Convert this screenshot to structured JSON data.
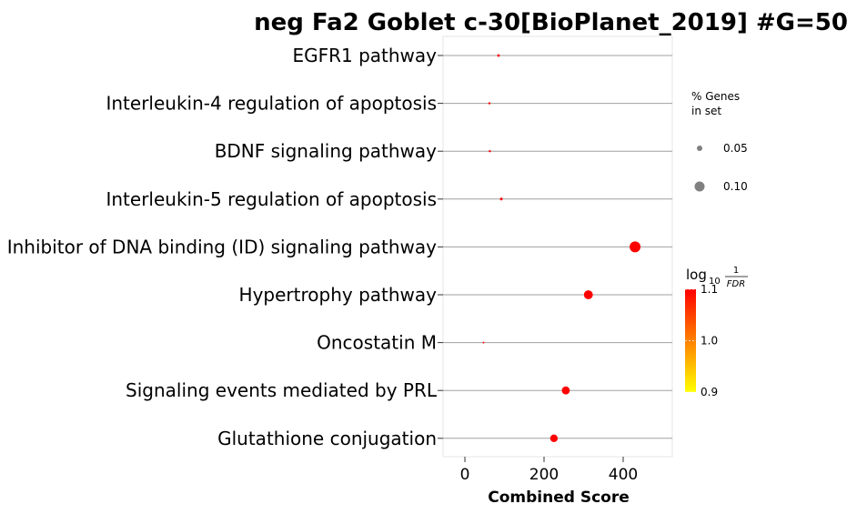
{
  "chart_data": {
    "type": "scatter",
    "title": "neg Fa2 Goblet c-30[BioPlanet_2019] #G=50",
    "xlabel": "Combined Score",
    "xlim": [
      -40,
      520
    ],
    "xticks": [
      0,
      200,
      400
    ],
    "grid": "horizontal",
    "categories": [
      "EGFR1 pathway",
      "Interleukin-4 regulation of apoptosis",
      "BDNF signaling pathway",
      "Interleukin-5 regulation of apoptosis",
      "Inhibitor of DNA binding (ID) signaling pathway",
      "Hypertrophy pathway",
      "Oncostatin M",
      "Signaling events mediated by PRL",
      "Glutathione conjugation"
    ],
    "points": [
      {
        "x": 85,
        "genes_pct": 0.007,
        "log10_inv_fdr": 1.1
      },
      {
        "x": 62,
        "genes_pct": 0.005,
        "log10_inv_fdr": 1.1
      },
      {
        "x": 63,
        "genes_pct": 0.005,
        "log10_inv_fdr": 1.1
      },
      {
        "x": 92,
        "genes_pct": 0.008,
        "log10_inv_fdr": 1.1
      },
      {
        "x": 430,
        "genes_pct": 0.125,
        "log10_inv_fdr": 1.1
      },
      {
        "x": 312,
        "genes_pct": 0.083,
        "log10_inv_fdr": 1.1
      },
      {
        "x": 47,
        "genes_pct": 0.003,
        "log10_inv_fdr": 1.1
      },
      {
        "x": 255,
        "genes_pct": 0.067,
        "log10_inv_fdr": 1.1
      },
      {
        "x": 225,
        "genes_pct": 0.06,
        "log10_inv_fdr": 1.1
      }
    ],
    "size_legend": {
      "title_line1": "% Genes",
      "title_line2": "in set",
      "entries": [
        {
          "value": 0.05,
          "label": "0.05"
        },
        {
          "value": 0.1,
          "label": "0.10"
        }
      ]
    },
    "color_legend": {
      "title_main": "log",
      "title_sub": "10",
      "frac_num": "1",
      "frac_den": "FDR",
      "range": [
        0.9,
        1.1
      ],
      "ticks": [
        "1.1",
        "1.0",
        "0.9"
      ],
      "colors": {
        "low": "#ffff00",
        "mid": "#ff8000",
        "high": "#ff0000"
      }
    },
    "colors": {
      "point": "#ff0000",
      "grid": "#a0a0a0",
      "frame": "#e6e6e6"
    }
  }
}
